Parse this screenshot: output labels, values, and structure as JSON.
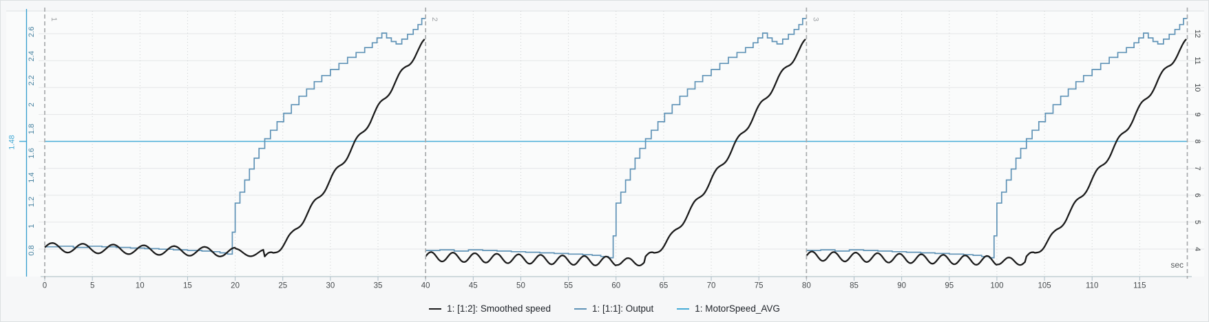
{
  "chart_data": {
    "type": "line",
    "title": "",
    "x_axis": {
      "unit": "sec",
      "range": [
        0,
        120
      ],
      "tick_step": 5,
      "tick_values": [
        0,
        5,
        10,
        15,
        20,
        25,
        30,
        35,
        40,
        45,
        50,
        55,
        60,
        65,
        70,
        75,
        80,
        85,
        90,
        95,
        100,
        105,
        110,
        115
      ],
      "grid": "dotted-vertical"
    },
    "left_axis": {
      "tick_values": [
        0.8,
        1,
        1.2,
        1.4,
        1.6,
        1.8,
        2,
        2.2,
        2.4,
        2.6
      ],
      "tick_labels": [
        "0.8",
        "1",
        "1.2",
        "1.4",
        "1.6",
        "1.8",
        "2",
        "2.2",
        "2.4",
        "2.6"
      ],
      "marker_label": "1.48",
      "marker_value": 1.48,
      "axis_color": "#3aa0cf",
      "label_color": "#44809f"
    },
    "right_axis": {
      "tick_values": [
        4,
        5,
        6,
        7,
        8,
        9,
        10,
        11,
        12
      ],
      "tick_labels": [
        "4",
        "5",
        "6",
        "7",
        "8",
        "9",
        "10",
        "11",
        "12"
      ],
      "label_color": "#3c4043"
    },
    "segments": {
      "boundaries_sec": [
        0,
        40,
        80,
        120
      ],
      "labels": [
        "1",
        "2",
        "3"
      ],
      "label_color": "#9da1a4"
    },
    "series": [
      {
        "name": "1: [1:2]: Smoothed speed",
        "color": "#1b1b1b",
        "style": "wavy-ramp",
        "baseline": {
          "mean_per_segment": [
            0.825,
            0.75,
            0.755
          ],
          "slope_per_sec": -0.002,
          "wiggle_amplitude": 0.038,
          "wiggle_amplitude_late": 0.03,
          "wiggle_period_sec_per_segment": [
            3.2,
            2.3,
            2.3
          ],
          "end_sec": 23
        },
        "ramp_anchors": [
          [
            23,
            0.74
          ],
          [
            24,
            0.77
          ],
          [
            26,
            0.93
          ],
          [
            28,
            1.15
          ],
          [
            30,
            1.38
          ],
          [
            32,
            1.61
          ],
          [
            34,
            1.85
          ],
          [
            36,
            2.09
          ],
          [
            38,
            2.32
          ],
          [
            39.3,
            2.45
          ],
          [
            40,
            2.53
          ]
        ],
        "ramp_wiggle": {
          "amplitude": 0.026,
          "period_sec": 2.3
        }
      },
      {
        "name": "1: [1:1]: Output",
        "color": "#5e92b6",
        "style": "step",
        "segment_points": [
          [
            0,
            0.83
          ],
          [
            1.5,
            0.835
          ],
          [
            3,
            0.825
          ],
          [
            4.5,
            0.835
          ],
          [
            6,
            0.83
          ],
          [
            7.5,
            0.825
          ],
          [
            9,
            0.82
          ],
          [
            10.5,
            0.815
          ],
          [
            12,
            0.81
          ],
          [
            13.5,
            0.805
          ],
          [
            15,
            0.8
          ],
          [
            16.5,
            0.795
          ],
          [
            17.5,
            0.79
          ],
          [
            18.4,
            0.78
          ],
          [
            19.2,
            0.77
          ],
          [
            19.7,
            0.95
          ],
          [
            20,
            1.19
          ],
          [
            20.5,
            1.28
          ],
          [
            21,
            1.38
          ],
          [
            21.5,
            1.47
          ],
          [
            22,
            1.56
          ],
          [
            22.5,
            1.64
          ],
          [
            23.1,
            1.72
          ],
          [
            23.7,
            1.79
          ],
          [
            24.4,
            1.86
          ],
          [
            25.1,
            1.93
          ],
          [
            25.9,
            2
          ],
          [
            26.7,
            2.07
          ],
          [
            27.5,
            2.13
          ],
          [
            28.3,
            2.19
          ],
          [
            29.1,
            2.24
          ],
          [
            30,
            2.29
          ],
          [
            30.9,
            2.34
          ],
          [
            31.8,
            2.39
          ],
          [
            32.7,
            2.43
          ],
          [
            33.6,
            2.47
          ],
          [
            34.4,
            2.51
          ],
          [
            34.9,
            2.55
          ],
          [
            35.4,
            2.59
          ],
          [
            35.9,
            2.55
          ],
          [
            36.4,
            2.52
          ],
          [
            36.9,
            2.5
          ],
          [
            37.5,
            2.54
          ],
          [
            38.1,
            2.58
          ],
          [
            38.7,
            2.62
          ],
          [
            39.2,
            2.66
          ],
          [
            39.6,
            2.71
          ],
          [
            40,
            2.71
          ]
        ],
        "baseline_delta_per_segment": [
          0,
          -0.03,
          -0.03
        ],
        "baseline_threshold": 1.1
      },
      {
        "name": "1: MotorSpeed_AVG",
        "color": "#45abd7",
        "style": "constant",
        "value": 1.48,
        "right_axis_position": 8
      }
    ],
    "legend_position": "bottom-center",
    "ylim_left": [
      0.59,
      2.77
    ],
    "ylim_right": [
      3,
      12.9
    ]
  }
}
